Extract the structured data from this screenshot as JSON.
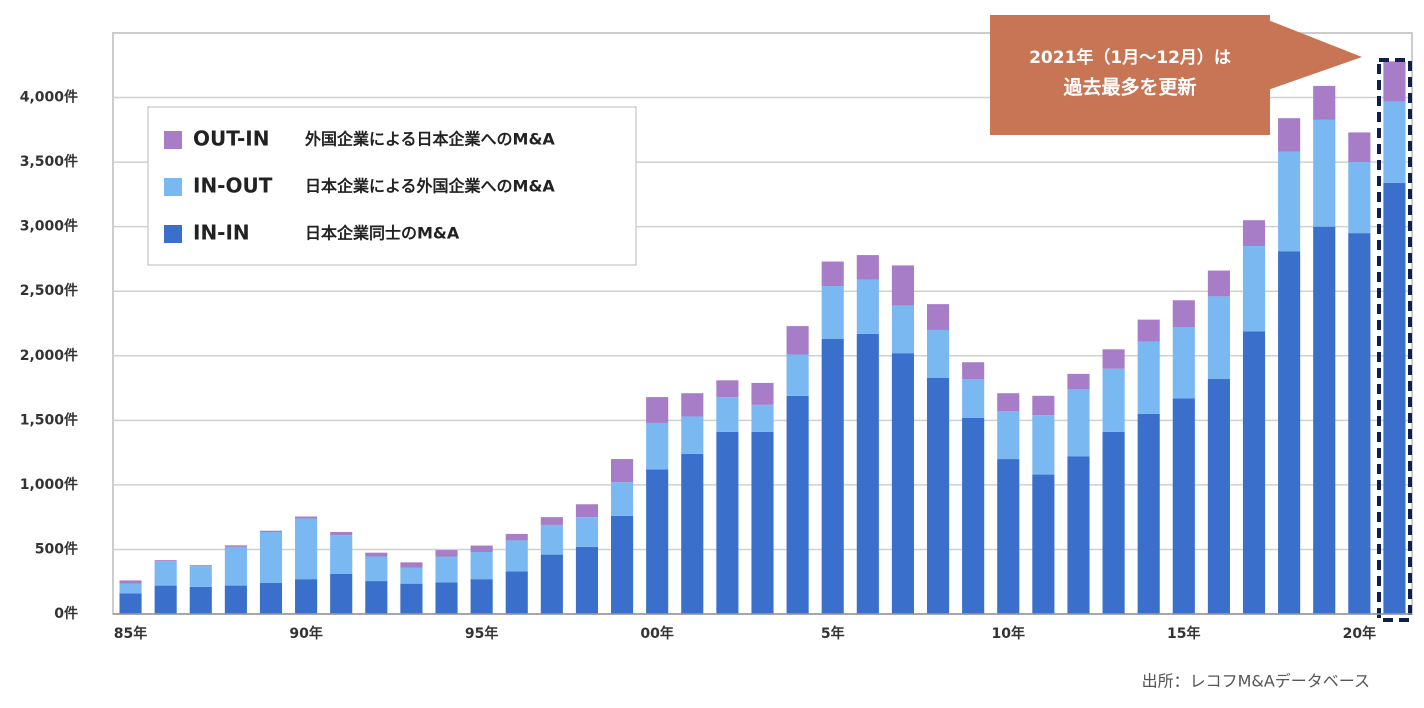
{
  "chart_data": {
    "type": "stacked-bar",
    "categories": [
      "85年",
      null,
      null,
      null,
      null,
      "90年",
      null,
      null,
      null,
      null,
      "95年",
      null,
      null,
      null,
      null,
      "00年",
      null,
      null,
      null,
      null,
      "5年",
      null,
      null,
      null,
      null,
      "10年",
      null,
      null,
      null,
      null,
      "15年",
      null,
      null,
      null,
      null,
      "20年",
      null
    ],
    "series": [
      {
        "name": "IN-IN",
        "description": "日本企業同士のM&A",
        "color": "#3a70cc",
        "values": [
          160,
          220,
          210,
          220,
          240,
          270,
          310,
          255,
          235,
          245,
          270,
          330,
          460,
          520,
          760,
          1120,
          1240,
          1410,
          1410,
          1690,
          2130,
          2170,
          2020,
          1830,
          1520,
          1200,
          1080,
          1220,
          1410,
          1550,
          1670,
          1820,
          2190,
          2810,
          3000,
          2950,
          3340
        ]
      },
      {
        "name": "IN-OUT",
        "description": "日本企業による外国企業へのM&A",
        "color": "#7ab8f2",
        "values": [
          75,
          190,
          160,
          300,
          395,
          470,
          300,
          190,
          125,
          200,
          210,
          240,
          230,
          230,
          260,
          360,
          290,
          270,
          210,
          320,
          410,
          420,
          370,
          370,
          300,
          370,
          460,
          520,
          490,
          560,
          550,
          640,
          660,
          770,
          830,
          550,
          630
        ]
      },
      {
        "name": "OUT-IN",
        "description": "外国企業による日本企業へのM&A",
        "color": "#a67dc6",
        "values": [
          25,
          7,
          8,
          12,
          10,
          15,
          25,
          30,
          40,
          50,
          50,
          50,
          60,
          100,
          180,
          200,
          180,
          130,
          170,
          220,
          190,
          190,
          310,
          200,
          130,
          140,
          150,
          120,
          150,
          170,
          210,
          200,
          200,
          260,
          260,
          230,
          310
        ]
      }
    ],
    "ylim": [
      0,
      4500
    ],
    "yticks": [
      {
        "value": 0,
        "label": "0件"
      },
      {
        "value": 500,
        "label": "500件"
      },
      {
        "value": 1000,
        "label": "1,000件"
      },
      {
        "value": 1500,
        "label": "1,500件"
      },
      {
        "value": 2000,
        "label": "2,000件"
      },
      {
        "value": 2500,
        "label": "2,500件"
      },
      {
        "value": 3000,
        "label": "3,000件"
      },
      {
        "value": 3500,
        "label": "3,500件"
      },
      {
        "value": 4000,
        "label": "4,000件"
      }
    ],
    "grid": true,
    "annotation": [
      "2021年（1月～12月）は",
      "過去最多を更新"
    ],
    "source": "出所：レコフM&Aデータベース"
  }
}
